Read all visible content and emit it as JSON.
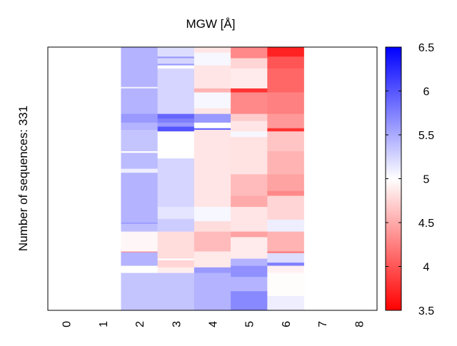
{
  "chart_data": {
    "type": "heatmap",
    "title": "MGW [Å]",
    "xlabel": "",
    "ylabel": "Number of sequences: 331",
    "n_rows": 331,
    "x_categories": [
      "0",
      "1",
      "2",
      "3",
      "4",
      "5",
      "6",
      "7",
      "8"
    ],
    "colorbar": {
      "range": [
        3.5,
        6.5
      ],
      "center": 5,
      "low_color": "#ff0000",
      "mid_color": "#ffffff",
      "high_color": "#0000ff",
      "ticks": [
        "3.5",
        "4",
        "4.5",
        "5",
        "5.5",
        "6",
        "6.5"
      ]
    },
    "columns": [
      {
        "position": 2,
        "segments": [
          [
            0,
            5.45
          ],
          [
            50,
            5.1
          ],
          [
            52,
            5.45
          ],
          [
            84,
            5.6
          ],
          [
            95,
            5.45
          ],
          [
            104,
            5.35
          ],
          [
            131,
            5.0
          ],
          [
            133,
            5.4
          ],
          [
            153,
            5.1
          ],
          [
            158,
            5.45
          ],
          [
            221,
            5.7
          ],
          [
            222,
            5.38
          ],
          [
            232,
            4.95
          ],
          [
            257,
            4.3
          ],
          [
            258,
            5.45
          ],
          [
            275,
            5.0
          ],
          [
            284,
            5.35
          ]
        ]
      },
      {
        "position": 3,
        "segments": [
          [
            0,
            5.2
          ],
          [
            12,
            5.6
          ],
          [
            14,
            5.25
          ],
          [
            21,
            5.6
          ],
          [
            23,
            5.0
          ],
          [
            27,
            5.25
          ],
          [
            84,
            5.9
          ],
          [
            90,
            5.75
          ],
          [
            95,
            5.6
          ],
          [
            100,
            6.0
          ],
          [
            106,
            5.0
          ],
          [
            140,
            5.25
          ],
          [
            201,
            5.15
          ],
          [
            216,
            5.3
          ],
          [
            232,
            4.8
          ],
          [
            266,
            5.0
          ],
          [
            268,
            4.75
          ],
          [
            277,
            4.9
          ],
          [
            284,
            5.35
          ]
        ]
      },
      {
        "position": 4,
        "segments": [
          [
            0,
            4.85
          ],
          [
            7,
            5.05
          ],
          [
            23,
            4.85
          ],
          [
            52,
            4.55
          ],
          [
            57,
            5.05
          ],
          [
            77,
            4.85
          ],
          [
            84,
            5.6
          ],
          [
            95,
            5.0
          ],
          [
            102,
            5.9
          ],
          [
            104,
            4.85
          ],
          [
            201,
            5.05
          ],
          [
            219,
            4.8
          ],
          [
            232,
            4.6
          ],
          [
            257,
            4.87
          ],
          [
            277,
            5.6
          ],
          [
            284,
            5.45
          ]
        ]
      },
      {
        "position": 5,
        "segments": [
          [
            0,
            4.3
          ],
          [
            14,
            4.75
          ],
          [
            27,
            4.88
          ],
          [
            52,
            3.8
          ],
          [
            57,
            4.3
          ],
          [
            84,
            4.7
          ],
          [
            93,
            4.85
          ],
          [
            106,
            5.05
          ],
          [
            113,
            4.83
          ],
          [
            160,
            4.6
          ],
          [
            187,
            4.5
          ],
          [
            201,
            4.85
          ],
          [
            232,
            4.45
          ],
          [
            239,
            4.88
          ],
          [
            266,
            5.45
          ],
          [
            275,
            5.65
          ],
          [
            289,
            5.45
          ],
          [
            307,
            5.7
          ]
        ]
      },
      {
        "position": 6,
        "segments": [
          [
            0,
            3.7
          ],
          [
            12,
            4.0
          ],
          [
            27,
            4.1
          ],
          [
            57,
            4.25
          ],
          [
            84,
            4.4
          ],
          [
            102,
            3.8
          ],
          [
            106,
            4.65
          ],
          [
            131,
            4.55
          ],
          [
            160,
            4.45
          ],
          [
            181,
            4.3
          ],
          [
            187,
            4.75
          ],
          [
            217,
            5.1
          ],
          [
            232,
            4.55
          ],
          [
            257,
            4.2
          ],
          [
            259,
            5.2
          ],
          [
            271,
            5.75
          ],
          [
            275,
            4.92
          ],
          [
            284,
            4.98
          ],
          [
            313,
            5.1
          ]
        ]
      }
    ]
  }
}
